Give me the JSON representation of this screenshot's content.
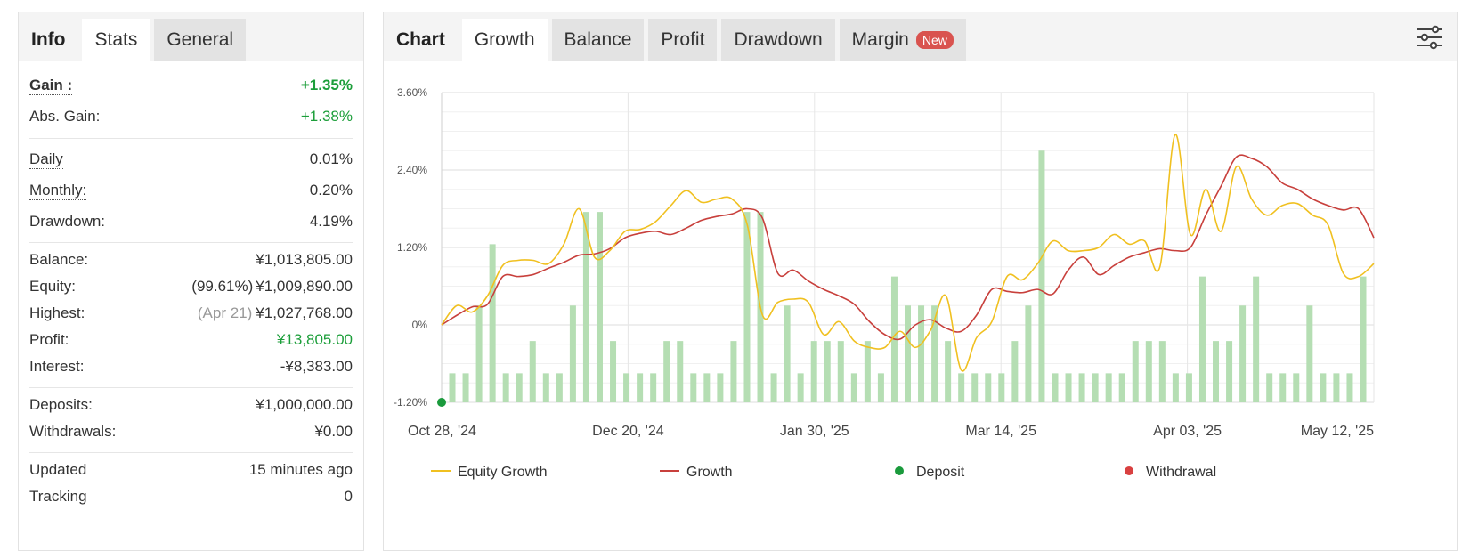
{
  "left_tabs": [
    "Info",
    "Stats",
    "General"
  ],
  "left_active_tab": 1,
  "stats": {
    "gain": {
      "label": "Gain :",
      "value": "+1.35%"
    },
    "abs_gain": {
      "label": "Abs. Gain:",
      "value": "+1.38%"
    },
    "daily": {
      "label": "Daily",
      "value": "0.01%"
    },
    "monthly": {
      "label": "Monthly:",
      "value": "0.20%"
    },
    "drawdown": {
      "label": "Drawdown:",
      "value": "4.19%"
    },
    "balance": {
      "label": "Balance:",
      "value": "¥1,013,805.00"
    },
    "equity": {
      "label": "Equity:",
      "note": "(99.61%)",
      "value": "¥1,009,890.00"
    },
    "highest": {
      "label": "Highest:",
      "note": "(Apr 21)",
      "value": "¥1,027,768.00"
    },
    "profit": {
      "label": "Profit:",
      "value": "¥13,805.00"
    },
    "interest": {
      "label": "Interest:",
      "value": "-¥8,383.00"
    },
    "deposits": {
      "label": "Deposits:",
      "value": "¥1,000,000.00"
    },
    "withdrawals": {
      "label": "Withdrawals:",
      "value": "¥0.00"
    },
    "updated": {
      "label": "Updated",
      "value": "15 minutes ago"
    },
    "tracking": {
      "label": "Tracking",
      "value": "0"
    }
  },
  "chart_tabs": {
    "chart_label": "Chart",
    "items": [
      "Growth",
      "Balance",
      "Profit",
      "Drawdown",
      "Margin"
    ],
    "active": 0,
    "new_badge": "New"
  },
  "colors": {
    "equity_growth": "#f0c020",
    "growth": "#c8403c",
    "bars": "#b5deb3",
    "deposit": "#1a9a3c",
    "withdrawal": "#d94040",
    "green_text": "#1c9e3a"
  },
  "chart_data": {
    "type": "line",
    "ylim": [
      -1.2,
      3.6
    ],
    "y_ticks": [
      "3.60%",
      "2.40%",
      "1.20%",
      "0%",
      "-1.20%"
    ],
    "y_tick_values": [
      3.6,
      2.4,
      1.2,
      0,
      -1.2
    ],
    "x_ticks": [
      "Oct 28, '24",
      "Dec 20, '24",
      "Jan 30, '25",
      "Mar 14, '25",
      "Apr 03, '25",
      "May 12, '25"
    ],
    "grid": true,
    "legend": [
      "Equity Growth",
      "Growth",
      "Deposit",
      "Withdrawal"
    ],
    "legend_placement": "bottom",
    "growth_values": [
      0,
      0.15,
      0.28,
      0.32,
      0.75,
      0.75,
      0.78,
      0.88,
      0.97,
      1.08,
      1.1,
      1.18,
      1.35,
      1.42,
      1.45,
      1.4,
      1.5,
      1.62,
      1.68,
      1.72,
      1.8,
      1.65,
      0.8,
      0.85,
      0.68,
      0.55,
      0.45,
      0.32,
      0.05,
      -0.15,
      -0.22,
      0.0,
      0.08,
      -0.05,
      -0.1,
      0.15,
      0.55,
      0.52,
      0.5,
      0.55,
      0.48,
      0.85,
      1.05,
      0.78,
      0.92,
      1.05,
      1.12,
      1.18,
      1.15,
      1.2,
      1.7,
      2.15,
      2.6,
      2.58,
      2.45,
      2.2,
      2.1,
      1.95,
      1.85,
      1.78,
      1.8,
      1.35
    ],
    "equity_growth_values": [
      0,
      0.3,
      0.2,
      0.45,
      0.92,
      1.0,
      1.0,
      0.95,
      1.25,
      1.8,
      1.05,
      1.15,
      1.45,
      1.48,
      1.6,
      1.85,
      2.08,
      1.9,
      1.95,
      1.95,
      1.55,
      0.15,
      0.35,
      0.4,
      0.35,
      -0.15,
      0.05,
      -0.25,
      -0.35,
      -0.35,
      -0.1,
      -0.35,
      -0.08,
      0.45,
      -0.7,
      -0.2,
      0.05,
      0.75,
      0.7,
      0.95,
      1.3,
      1.15,
      1.15,
      1.2,
      1.4,
      1.25,
      1.3,
      0.9,
      2.95,
      1.4,
      2.1,
      1.45,
      2.45,
      1.95,
      1.7,
      1.85,
      1.88,
      1.7,
      1.55,
      0.8,
      0.75,
      0.95
    ],
    "bar_values": [
      -0.75,
      -0.75,
      0.3,
      1.25,
      -0.75,
      -0.75,
      -0.25,
      -0.75,
      -0.75,
      0.3,
      1.75,
      1.75,
      -0.25,
      -0.75,
      -0.75,
      -0.75,
      -0.25,
      -0.25,
      -0.75,
      -0.75,
      -0.75,
      -0.25,
      1.75,
      1.75,
      -0.75,
      0.3,
      -0.75,
      -0.25,
      -0.25,
      -0.25,
      -0.75,
      -0.25,
      -0.75,
      0.75,
      0.3,
      0.3,
      0.3,
      -0.25,
      -0.75,
      -0.75,
      -0.75,
      -0.75,
      -0.25,
      0.3,
      2.7,
      -0.75,
      -0.75,
      -0.75,
      -0.75,
      -0.75,
      -0.75,
      -0.25,
      -0.25,
      -0.25,
      -0.75,
      -0.75,
      0.75,
      -0.25,
      -0.25,
      0.3,
      0.75,
      -0.75,
      -0.75,
      -0.75,
      0.3,
      -0.75,
      -0.75,
      -0.75,
      0.75
    ],
    "deposit_points": [
      {
        "x_index": 0,
        "y": -1.2
      }
    ]
  }
}
